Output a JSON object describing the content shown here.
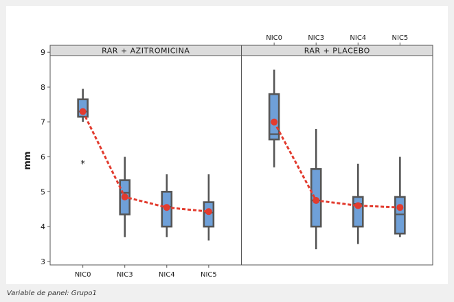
{
  "chart_data": {
    "type": "box",
    "ylabel": "mm",
    "ylim": [
      2.9,
      9.2
    ],
    "yticks": [
      3,
      4,
      5,
      6,
      7,
      8,
      9
    ],
    "categories": [
      "NIC0",
      "NIC3",
      "NIC4",
      "NIC5"
    ],
    "grid": false,
    "panel_variable_label": "Variable de panel: Grupo1",
    "box_color": "#6fa0d8",
    "mean_color": "#e23b2e",
    "panels": [
      {
        "title": "RAR + AZITROMICINA",
        "boxes": [
          {
            "category": "NIC0",
            "min": 7.0,
            "q1": 7.15,
            "median": 7.3,
            "q3": 7.65,
            "max": 7.95,
            "mean": 7.3,
            "outliers": [
              5.82
            ]
          },
          {
            "category": "NIC3",
            "min": 3.7,
            "q1": 4.35,
            "median": 4.97,
            "q3": 5.33,
            "max": 6.0,
            "mean": 4.85,
            "outliers": []
          },
          {
            "category": "NIC4",
            "min": 3.7,
            "q1": 4.0,
            "median": 4.57,
            "q3": 5.0,
            "max": 5.5,
            "mean": 4.55,
            "outliers": []
          },
          {
            "category": "NIC5",
            "min": 3.6,
            "q1": 4.0,
            "median": 4.4,
            "q3": 4.7,
            "max": 5.5,
            "mean": 4.43,
            "outliers": []
          }
        ]
      },
      {
        "title": "RAR + PLACEBO",
        "boxes": [
          {
            "category": "NIC0",
            "min": 5.7,
            "q1": 6.5,
            "median": 6.65,
            "q3": 7.8,
            "max": 8.5,
            "mean": 7.0,
            "outliers": []
          },
          {
            "category": "NIC3",
            "min": 3.35,
            "q1": 4.0,
            "median": 4.75,
            "q3": 5.65,
            "max": 6.8,
            "mean": 4.75,
            "outliers": []
          },
          {
            "category": "NIC4",
            "min": 3.5,
            "q1": 4.0,
            "median": 4.65,
            "q3": 4.85,
            "max": 5.8,
            "mean": 4.6,
            "outliers": []
          },
          {
            "category": "NIC5",
            "min": 3.7,
            "q1": 3.8,
            "median": 4.35,
            "q3": 4.85,
            "max": 6.0,
            "mean": 4.55,
            "outliers": []
          }
        ]
      }
    ]
  }
}
